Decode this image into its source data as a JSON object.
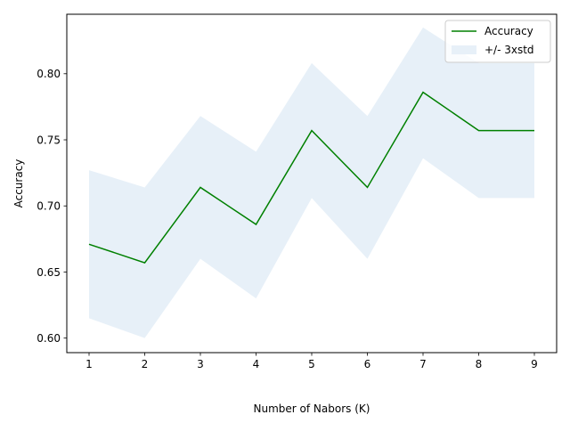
{
  "chart_data": {
    "type": "line",
    "xlabel": "Number of Nabors (K)",
    "ylabel": "Accuracy",
    "xlim": [
      0.6,
      9.4
    ],
    "ylim": [
      0.589,
      0.845
    ],
    "x": [
      1,
      2,
      3,
      4,
      5,
      6,
      7,
      8,
      9
    ],
    "xticks": [
      "1",
      "2",
      "3",
      "4",
      "5",
      "6",
      "7",
      "8",
      "9"
    ],
    "yticks": [
      {
        "value": 0.6,
        "label": "0.60"
      },
      {
        "value": 0.65,
        "label": "0.65"
      },
      {
        "value": 0.7,
        "label": "0.70"
      },
      {
        "value": 0.75,
        "label": "0.75"
      },
      {
        "value": 0.8,
        "label": "0.80"
      }
    ],
    "series": [
      {
        "name": "Accuracy",
        "type": "line",
        "color": "#008000",
        "values": [
          0.671,
          0.657,
          0.714,
          0.686,
          0.757,
          0.714,
          0.786,
          0.757,
          0.757
        ]
      },
      {
        "name": "+/- 3xstd",
        "type": "band",
        "color": "#e7f0f8",
        "lower": [
          0.615,
          0.6,
          0.66,
          0.63,
          0.706,
          0.66,
          0.736,
          0.706,
          0.706
        ],
        "upper": [
          0.727,
          0.714,
          0.768,
          0.741,
          0.808,
          0.768,
          0.835,
          0.808,
          0.808
        ]
      }
    ],
    "grid": false,
    "legend": "top-right"
  }
}
